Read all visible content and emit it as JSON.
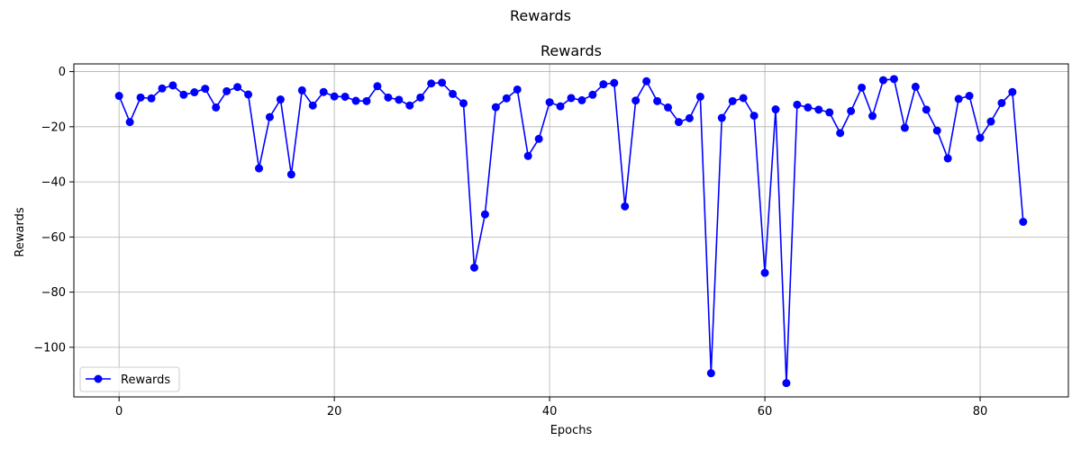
{
  "figure": {
    "suptitle": "Rewards"
  },
  "chart_data": {
    "type": "line",
    "title": "Rewards",
    "xlabel": "Epochs",
    "ylabel": "Rewards",
    "xlim": [
      -4.2,
      88.2
    ],
    "ylim": [
      -118,
      2.8
    ],
    "xticks": [
      0,
      20,
      40,
      60,
      80
    ],
    "yticks": [
      0,
      -20,
      -40,
      -60,
      -80,
      -100
    ],
    "grid": true,
    "legend": {
      "position": "lower-left"
    },
    "series": [
      {
        "name": "Rewards",
        "color": "#0000ff",
        "marker": "circle",
        "x": [
          0,
          1,
          2,
          3,
          4,
          5,
          6,
          7,
          8,
          9,
          10,
          11,
          12,
          13,
          14,
          15,
          16,
          17,
          18,
          19,
          20,
          21,
          22,
          23,
          24,
          25,
          26,
          27,
          28,
          29,
          30,
          31,
          32,
          33,
          34,
          35,
          36,
          37,
          38,
          39,
          40,
          41,
          42,
          43,
          44,
          45,
          46,
          47,
          48,
          49,
          50,
          51,
          52,
          53,
          54,
          55,
          56,
          57,
          58,
          59,
          60,
          61,
          62,
          63,
          64,
          65,
          66,
          67,
          68,
          69,
          70,
          71,
          72,
          73,
          74,
          75,
          76,
          77,
          78,
          79,
          80,
          81,
          82,
          83,
          84
        ],
        "values": [
          -8.8,
          -18.3,
          -9.4,
          -9.7,
          -6.1,
          -5,
          -8.4,
          -7.5,
          -6.2,
          -13,
          -7.1,
          -5.6,
          -8.3,
          -35.1,
          -16.5,
          -10.1,
          -37.3,
          -6.8,
          -12.3,
          -7.4,
          -9,
          -9.1,
          -10.6,
          -10.7,
          -5.3,
          -9.4,
          -10.2,
          -12.3,
          -9.4,
          -4.3,
          -4,
          -8.1,
          -11.5,
          -71.1,
          -51.8,
          -12.9,
          -9.7,
          -6.5,
          -30.6,
          -24.4,
          -11.1,
          -12.6,
          -9.6,
          -10.4,
          -8.4,
          -4.6,
          -4.1,
          -48.9,
          -10.5,
          -3.5,
          -10.7,
          -13,
          -18.3,
          -16.9,
          -9.1,
          -109.4,
          -16.8,
          -10.7,
          -9.6,
          -16,
          -73,
          -13.7,
          -113,
          -12,
          -13,
          -13.8,
          -14.8,
          -22.3,
          -14.3,
          -5.8,
          -16.1,
          -3.1,
          -2.7,
          -20.4,
          -5.5,
          -13.8,
          -21.4,
          -31.5,
          -9.9,
          -8.8,
          -24,
          -18.1,
          -11.4,
          -7.4,
          -54.5
        ]
      }
    ]
  }
}
